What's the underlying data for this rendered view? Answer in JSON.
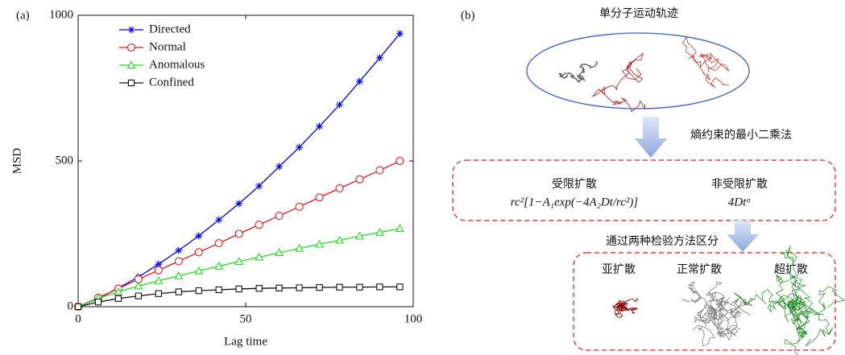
{
  "chart_data": {
    "type": "line",
    "panel_label": "(a)",
    "xlabel": "Lag time",
    "ylabel": "MSD",
    "x": [
      0,
      6,
      12,
      18,
      24,
      30,
      36,
      42,
      48,
      54,
      60,
      66,
      72,
      78,
      84,
      90,
      96
    ],
    "series": [
      {
        "name": "Directed",
        "color": "#0000ee",
        "marker": "asterisk",
        "values": [
          0,
          28,
          64,
          102,
          146,
          193,
          243,
          298,
          354,
          414,
          481,
          547,
          619,
          693,
          773,
          854,
          937
        ]
      },
      {
        "name": "Normal",
        "color": "#e8171c",
        "marker": "circle",
        "values": [
          0,
          31,
          62,
          94,
          125,
          156,
          187,
          218,
          250,
          281,
          312,
          343,
          375,
          406,
          437,
          468,
          500
        ]
      },
      {
        "name": "Anomalous",
        "color": "#22dd22",
        "marker": "triangle",
        "values": [
          0,
          29,
          51,
          71,
          89,
          106,
          123,
          139,
          155,
          170,
          185,
          200,
          214,
          228,
          242,
          255,
          268
        ]
      },
      {
        "name": "Confined",
        "color": "#111111",
        "marker": "square",
        "values": [
          0,
          16,
          28,
          37,
          45,
          51,
          55,
          58,
          61,
          63,
          64,
          65,
          66,
          67,
          67,
          68,
          68
        ]
      }
    ],
    "xlim": [
      0,
      100
    ],
    "xticks": [
      0,
      50,
      100
    ],
    "ylim": [
      0,
      1000
    ],
    "yticks": [
      0,
      500,
      1000
    ],
    "legend": "upper left",
    "grid": false
  },
  "diagram": {
    "panel_label": "(b)",
    "trajectory_title": "单分子运动轨迹",
    "method": "熵约束的最小二乘法",
    "confined_title": "受限扩散",
    "confined_formula": "rc²[1−A₁exp(−4A₂Dt/rc²)]",
    "free_title": "非受限扩散",
    "free_formula": "4Dtᵅ",
    "test_label": "通过两种检验方法区分",
    "classes": [
      "亚扩散",
      "正常扩散",
      "超扩散"
    ]
  }
}
